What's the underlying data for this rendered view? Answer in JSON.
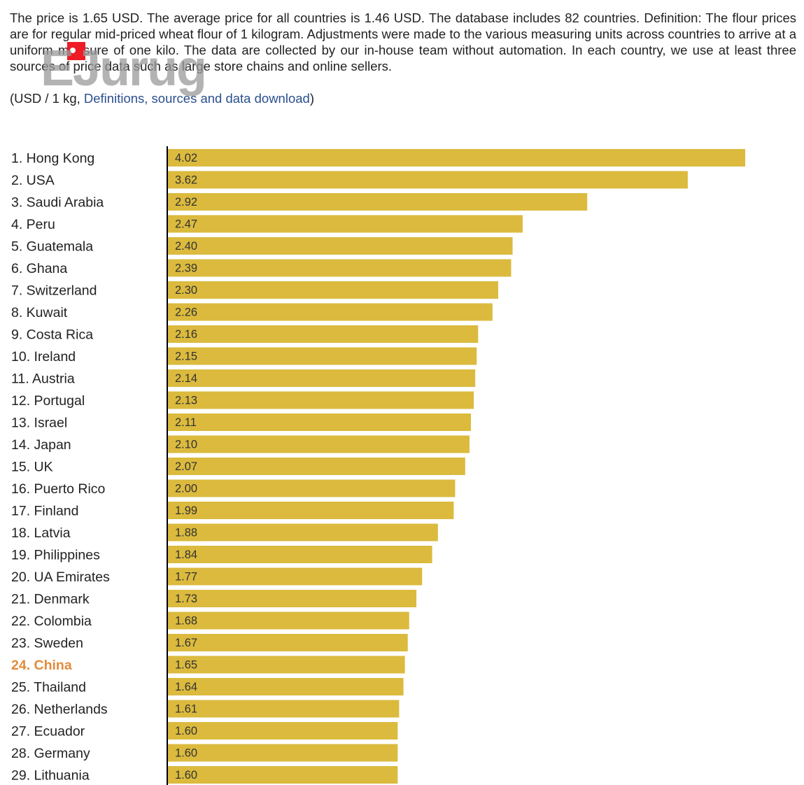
{
  "intro": {
    "text": "The price is 1.65 USD. The average price for all countries is 1.46 USD. The database includes 82 countries. Definition: The flour prices are for regular mid-priced wheat flour of 1 kilogram. Adjustments were made to the various measuring units across countries to arrive at a uniform measure of one kilo. The data are collected by our in-house team without automation. In each country, we use at least three sources of price data such as large store chains and online sellers.",
    "units_prefix": "(USD / 1 kg, ",
    "link_text": "Definitions, sources and data download",
    "units_suffix": ")"
  },
  "watermark": {
    "text": "EJurug",
    "color": "#ee1c25"
  },
  "colors": {
    "bar": "#dbba3e",
    "highlight": "#e38b3b",
    "link": "#2a4f8f",
    "axis": "#000000"
  },
  "chart_data": {
    "type": "bar",
    "orientation": "horizontal",
    "title": "",
    "unit": "USD / 1 kg",
    "xlim": [
      0,
      4.02
    ],
    "highlight": "China",
    "categories": [
      "1. Hong Kong",
      "2. USA",
      "3. Saudi Arabia",
      "4. Peru",
      "5. Guatemala",
      "6. Ghana",
      "7. Switzerland",
      "8. Kuwait",
      "9. Costa Rica",
      "10. Ireland",
      "11. Austria",
      "12. Portugal",
      "13. Israel",
      "14. Japan",
      "15. UK",
      "16. Puerto Rico",
      "17. Finland",
      "18. Latvia",
      "19. Philippines",
      "20. UA Emirates",
      "21. Denmark",
      "22. Colombia",
      "23. Sweden",
      "24. China",
      "25. Thailand",
      "26. Netherlands",
      "27. Ecuador",
      "28. Germany",
      "29. Lithuania"
    ],
    "values": [
      4.02,
      3.62,
      2.92,
      2.47,
      2.4,
      2.39,
      2.3,
      2.26,
      2.16,
      2.15,
      2.14,
      2.13,
      2.11,
      2.1,
      2.07,
      2.0,
      1.99,
      1.88,
      1.84,
      1.77,
      1.73,
      1.68,
      1.67,
      1.65,
      1.64,
      1.61,
      1.6,
      1.6,
      1.6
    ],
    "value_labels": [
      "4.02",
      "3.62",
      "2.92",
      "2.47",
      "2.40",
      "2.39",
      "2.30",
      "2.26",
      "2.16",
      "2.15",
      "2.14",
      "2.13",
      "2.11",
      "2.10",
      "2.07",
      "2.00",
      "1.99",
      "1.88",
      "1.84",
      "1.77",
      "1.73",
      "1.68",
      "1.67",
      "1.65",
      "1.64",
      "1.61",
      "1.60",
      "1.60",
      "1.60"
    ]
  }
}
